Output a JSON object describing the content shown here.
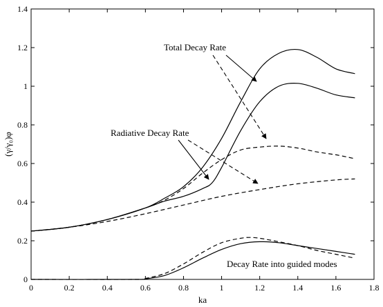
{
  "chart_data": {
    "type": "line",
    "xlabel": "ka",
    "ylabel": "(γ/γ₀)φ",
    "xlim": [
      0,
      1.8
    ],
    "ylim": [
      0,
      1.4
    ],
    "xticks": [
      0,
      0.2,
      0.4,
      0.6,
      0.8,
      1,
      1.2,
      1.4,
      1.6,
      1.8
    ],
    "xtick_labels": [
      "0",
      "0.2",
      "0.4",
      "0.6",
      "0.8",
      "1",
      "1.2",
      "1.4",
      "1.6",
      "1.8"
    ],
    "yticks": [
      0,
      0.2,
      0.4,
      0.6,
      0.8,
      1,
      1.2,
      1.4
    ],
    "ytick_labels": [
      "0",
      "0.2",
      "0.4",
      "0.6",
      "0.8",
      "1",
      "1.2",
      "1.4"
    ],
    "grid": false,
    "series": [
      {
        "style": "solid",
        "x": [
          0,
          0.2,
          0.4,
          0.6,
          0.7,
          0.8,
          0.9,
          1.0,
          1.1,
          1.2,
          1.3,
          1.4,
          1.5,
          1.6,
          1.7
        ],
        "y": [
          0.25,
          0.27,
          0.31,
          0.37,
          0.42,
          0.48,
          0.58,
          0.73,
          0.92,
          1.09,
          1.17,
          1.19,
          1.15,
          1.09,
          1.065
        ]
      },
      {
        "style": "solid",
        "x": [
          0,
          0.2,
          0.4,
          0.6,
          0.7,
          0.8,
          0.9,
          0.95,
          1.0,
          1.1,
          1.2,
          1.3,
          1.4,
          1.5,
          1.6,
          1.7
        ],
        "y": [
          0.25,
          0.27,
          0.31,
          0.37,
          0.405,
          0.43,
          0.47,
          0.5,
          0.58,
          0.77,
          0.92,
          1.0,
          1.015,
          0.99,
          0.955,
          0.94
        ]
      },
      {
        "style": "dashed",
        "x": [
          0,
          0.2,
          0.4,
          0.6,
          0.7,
          0.8,
          0.9,
          1.0,
          1.1,
          1.2,
          1.3,
          1.4,
          1.5,
          1.6,
          1.7
        ],
        "y": [
          0.25,
          0.27,
          0.31,
          0.37,
          0.41,
          0.47,
          0.55,
          0.62,
          0.67,
          0.685,
          0.69,
          0.68,
          0.66,
          0.645,
          0.625
        ]
      },
      {
        "style": "dashed",
        "x": [
          0,
          0.2,
          0.4,
          0.6,
          0.8,
          1.0,
          1.2,
          1.4,
          1.6,
          1.7
        ],
        "y": [
          0.25,
          0.27,
          0.3,
          0.34,
          0.385,
          0.43,
          0.465,
          0.495,
          0.515,
          0.52
        ]
      },
      {
        "style": "solid",
        "x": [
          0,
          0.55,
          0.6,
          0.7,
          0.8,
          0.9,
          1.0,
          1.1,
          1.2,
          1.3,
          1.4,
          1.5,
          1.6,
          1.7
        ],
        "y": [
          0,
          0,
          0.003,
          0.02,
          0.06,
          0.11,
          0.155,
          0.185,
          0.195,
          0.19,
          0.175,
          0.16,
          0.145,
          0.13
        ]
      },
      {
        "style": "dashed",
        "x": [
          0,
          0.55,
          0.6,
          0.7,
          0.8,
          0.9,
          1.0,
          1.1,
          1.15,
          1.2,
          1.3,
          1.4,
          1.5,
          1.6,
          1.7
        ],
        "y": [
          0,
          0,
          0.005,
          0.03,
          0.08,
          0.14,
          0.19,
          0.213,
          0.217,
          0.213,
          0.195,
          0.175,
          0.15,
          0.13,
          0.11
        ]
      }
    ],
    "annotations": [
      {
        "text": "Total Decay Rate"
      },
      {
        "text": "Radiative Decay Rate"
      },
      {
        "text": "Decay Rate into guided modes"
      }
    ]
  }
}
